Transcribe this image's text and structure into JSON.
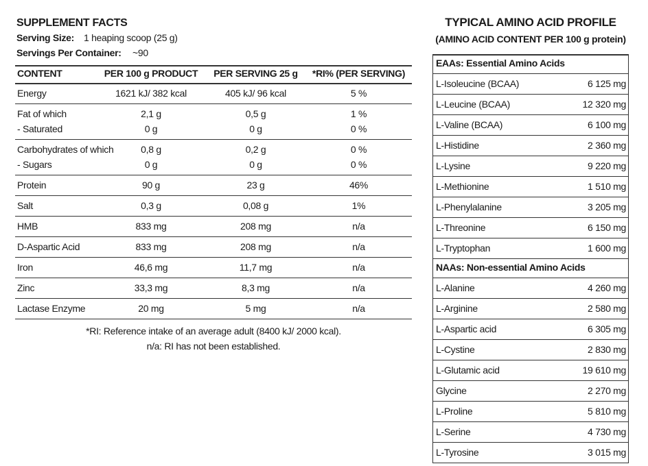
{
  "left": {
    "title": "SUPPLEMENT FACTS",
    "serving_size": {
      "label": "Serving Size:",
      "value": "1 heaping scoop (25 g)"
    },
    "servings": {
      "label": "Servings Per Container:",
      "value": "~90"
    },
    "table": {
      "header": [
        "CONTENT",
        "PER 100 g PRODUCT",
        "PER SERVING 25 g",
        "*RI% (PER SERVING)"
      ],
      "rows": [
        [
          [
            "Energy",
            "1621 kJ/ 382 kcal",
            "405 kJ/ 96 kcal",
            "5 %"
          ]
        ],
        [
          [
            "Fat of which",
            "2,1 g",
            "0,5 g",
            "1 %"
          ],
          [
            "- Saturated",
            "0 g",
            "0 g",
            "0 %"
          ]
        ],
        [
          [
            "Carbohydrates of which",
            "0,8 g",
            "0,2 g",
            "0 %"
          ],
          [
            "- Sugars",
            "0 g",
            "0 g",
            "0 %"
          ]
        ],
        [
          [
            "Protein",
            "90 g",
            "23 g",
            "46%"
          ]
        ],
        [
          [
            "Salt",
            "0,3 g",
            "0,08 g",
            "1%"
          ]
        ],
        [
          [
            "HMB",
            "833 mg",
            "208 mg",
            "n/a"
          ]
        ],
        [
          [
            "D-Aspartic Acid",
            "833 mg",
            "208 mg",
            "n/a"
          ]
        ],
        [
          [
            "Iron",
            "46,6 mg",
            "11,7 mg",
            "n/a"
          ]
        ],
        [
          [
            "Zinc",
            "33,3 mg",
            "8,3 mg",
            "n/a"
          ]
        ],
        [
          [
            "Lactase Enzyme",
            "20 mg",
            "5 mg",
            "n/a"
          ]
        ]
      ]
    },
    "footnotes": [
      "*RI: Reference intake of an average adult (8400 kJ/ 2000 kcal).",
      "n/a: RI has not been established."
    ]
  },
  "right": {
    "title": "TYPICAL AMINO ACID PROFILE",
    "subtitle": "(AMINO ACID CONTENT PER 100 g protein)",
    "sections": [
      {
        "heading": "EAAs: Essential Amino Acids",
        "items": [
          [
            "L-Isoleucine (BCAA)",
            "6 125 mg"
          ],
          [
            "L-Leucine (BCAA)",
            "12 320 mg"
          ],
          [
            "L-Valine (BCAA)",
            "6 100 mg"
          ],
          [
            "L-Histidine",
            "2 360 mg"
          ],
          [
            "L-Lysine",
            "9 220 mg"
          ],
          [
            "L-Methionine",
            "1 510 mg"
          ],
          [
            "L-Phenylalanine",
            "3 205 mg"
          ],
          [
            "L-Threonine",
            "6 150 mg"
          ],
          [
            "L-Tryptophan",
            "1 600 mg"
          ]
        ]
      },
      {
        "heading": "NAAs: Non-essential Amino Acids",
        "items": [
          [
            "L-Alanine",
            "4 260 mg"
          ],
          [
            "L-Arginine",
            "2 580 mg"
          ],
          [
            "L-Aspartic acid",
            "6 305 mg"
          ],
          [
            "L-Cystine",
            "2 830 mg"
          ],
          [
            "L-Glutamic acid",
            "19 610 mg"
          ],
          [
            "Glycine",
            "2 270 mg"
          ],
          [
            "L-Proline",
            "5 810 mg"
          ],
          [
            "L-Serine",
            "4 730 mg"
          ],
          [
            "L-Tyrosine",
            "3 015 mg"
          ]
        ]
      }
    ]
  }
}
